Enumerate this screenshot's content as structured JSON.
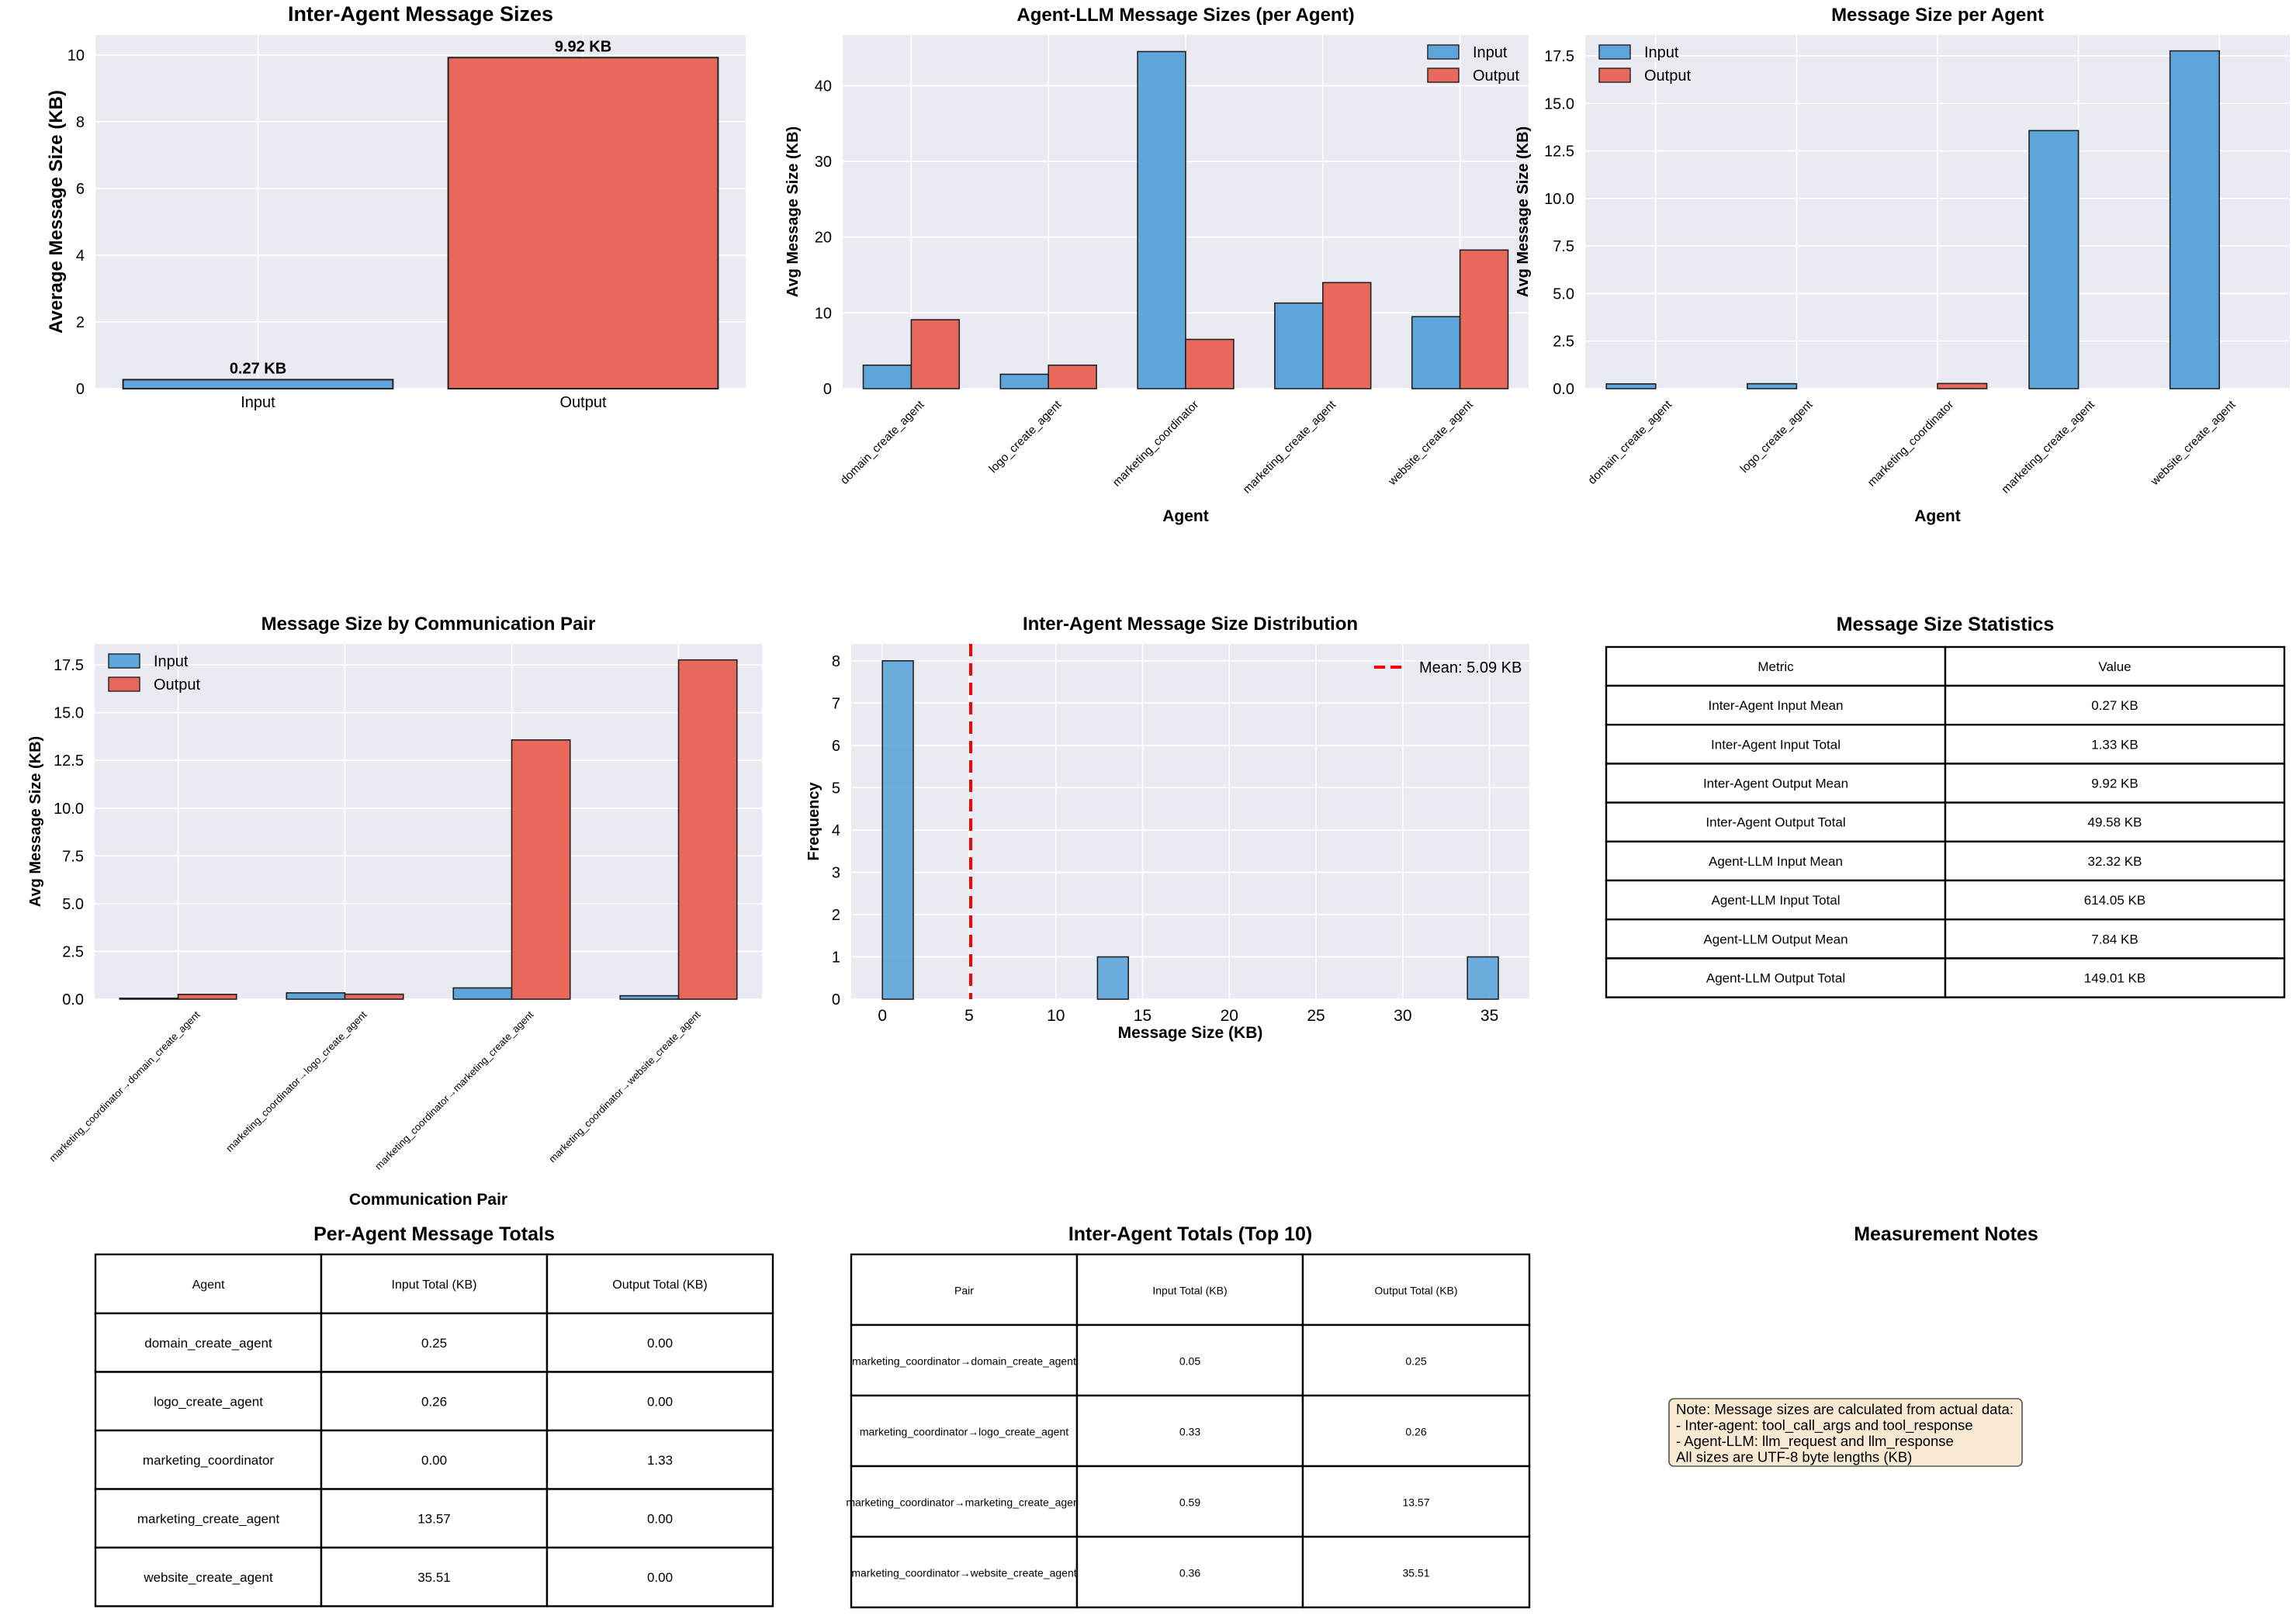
{
  "colors": {
    "input": "#5DA5DA",
    "output": "#E8695C",
    "plot_bg": "#EAEAF2",
    "mean_line": "#FF0000",
    "note_bg": "#F8E9D3"
  },
  "chart_data": [
    {
      "id": "c1",
      "type": "bar",
      "title": "Inter-Agent Message Sizes",
      "xlabel": "",
      "ylabel": "Average Message Size (KB)",
      "categories": [
        "Input",
        "Output"
      ],
      "values": [
        0.27,
        9.92
      ],
      "data_labels": [
        "0.27 KB",
        "9.92 KB"
      ],
      "ylim": [
        0,
        10.6
      ],
      "yticks": [
        "0",
        "2",
        "4",
        "6",
        "8",
        "10"
      ],
      "grid": true,
      "legend": "none"
    },
    {
      "id": "c2",
      "type": "bar",
      "title": "Agent-LLM Message Sizes (per Agent)",
      "xlabel": "Agent",
      "ylabel": "Avg Message Size (KB)",
      "categories": [
        "domain_create_agent",
        "logo_create_agent",
        "marketing_coordinator",
        "marketing_create_agent",
        "website_create_agent"
      ],
      "series": [
        {
          "name": "Input",
          "values": [
            3.1,
            1.9,
            44.5,
            11.3,
            9.5
          ]
        },
        {
          "name": "Output",
          "values": [
            9.1,
            3.1,
            6.5,
            14.0,
            18.3
          ]
        }
      ],
      "ylim": [
        0,
        46.7
      ],
      "yticks": [
        "0",
        "10",
        "20",
        "30",
        "40"
      ],
      "grid": true,
      "legend": "top-right"
    },
    {
      "id": "c3",
      "type": "bar",
      "title": "Message Size per Agent",
      "xlabel": "Agent",
      "ylabel": "Avg Message Size (KB)",
      "categories": [
        "domain_create_agent",
        "logo_create_agent",
        "marketing_coordinator",
        "marketing_create_agent",
        "website_create_agent"
      ],
      "series": [
        {
          "name": "Input",
          "values": [
            0.25,
            0.26,
            0.0,
            13.57,
            17.76
          ]
        },
        {
          "name": "Output",
          "values": [
            0.0,
            0.0,
            0.27,
            0.0,
            0.0
          ]
        }
      ],
      "ylim": [
        0,
        18.6
      ],
      "yticks": [
        "0.0",
        "2.5",
        "5.0",
        "7.5",
        "10.0",
        "12.5",
        "15.0",
        "17.5"
      ],
      "grid": true,
      "legend": "top-left"
    },
    {
      "id": "c4",
      "type": "bar",
      "title": "Message Size by Communication Pair",
      "xlabel": "Communication Pair",
      "ylabel": "Avg Message Size (KB)",
      "categories": [
        "marketing_coordinator→domain_create_agent",
        "marketing_coordinator→logo_create_agent",
        "marketing_coordinator→marketing_create_agent",
        "marketing_coordinator→website_create_agent"
      ],
      "series": [
        {
          "name": "Input",
          "values": [
            0.05,
            0.33,
            0.59,
            0.18
          ]
        },
        {
          "name": "Output",
          "values": [
            0.25,
            0.26,
            13.57,
            17.76
          ]
        }
      ],
      "ylim": [
        0,
        18.6
      ],
      "yticks": [
        "0.0",
        "2.5",
        "5.0",
        "7.5",
        "10.0",
        "12.5",
        "15.0",
        "17.5"
      ],
      "grid": true,
      "legend": "top-left"
    },
    {
      "id": "c5",
      "type": "histogram",
      "title": "Inter-Agent Message Size Distribution",
      "xlabel": "Message Size (KB)",
      "ylabel": "Frequency",
      "bins": [
        {
          "x0": 0.0,
          "x1": 1.78,
          "count": 8
        },
        {
          "x0": 12.4,
          "x1": 14.18,
          "count": 1
        },
        {
          "x0": 33.73,
          "x1": 35.51,
          "count": 1
        }
      ],
      "mean": 5.09,
      "mean_label": "Mean: 5.09 KB",
      "xlim": [
        -1.8,
        37.3
      ],
      "xticks": [
        "0",
        "5",
        "10",
        "15",
        "20",
        "25",
        "30",
        "35"
      ],
      "ylim": [
        0,
        8.4
      ],
      "yticks": [
        "0",
        "1",
        "2",
        "3",
        "4",
        "5",
        "6",
        "7",
        "8"
      ],
      "grid": true,
      "legend": "top-right"
    }
  ],
  "stats_table": {
    "title": "Message Size Statistics",
    "headers": [
      "Metric",
      "Value"
    ],
    "rows": [
      [
        "Inter-Agent Input Mean",
        "0.27 KB"
      ],
      [
        "Inter-Agent Input Total",
        "1.33 KB"
      ],
      [
        "Inter-Agent Output Mean",
        "9.92 KB"
      ],
      [
        "Inter-Agent Output Total",
        "49.58 KB"
      ],
      [
        "Agent-LLM Input Mean",
        "32.32 KB"
      ],
      [
        "Agent-LLM Input Total",
        "614.05 KB"
      ],
      [
        "Agent-LLM Output Mean",
        "7.84 KB"
      ],
      [
        "Agent-LLM Output Total",
        "149.01 KB"
      ]
    ]
  },
  "agent_totals_table": {
    "title": "Per-Agent Message Totals",
    "headers": [
      "Agent",
      "Input Total (KB)",
      "Output Total (KB)"
    ],
    "rows": [
      [
        "domain_create_agent",
        "0.25",
        "0.00"
      ],
      [
        "logo_create_agent",
        "0.26",
        "0.00"
      ],
      [
        "marketing_coordinator",
        "0.00",
        "1.33"
      ],
      [
        "marketing_create_agent",
        "13.57",
        "0.00"
      ],
      [
        "website_create_agent",
        "35.51",
        "0.00"
      ]
    ]
  },
  "pair_totals_table": {
    "title": "Inter-Agent Totals (Top 10)",
    "headers": [
      "Pair",
      "Input Total (KB)",
      "Output Total (KB)"
    ],
    "rows": [
      [
        "marketing_coordinator→domain_create_agent",
        "0.05",
        "0.25"
      ],
      [
        "marketing_coordinator→logo_create_agent",
        "0.33",
        "0.26"
      ],
      [
        "marketing_coordinator→marketing_create_agent",
        "0.59",
        "13.57"
      ],
      [
        "marketing_coordinator→website_create_agent",
        "0.36",
        "35.51"
      ]
    ]
  },
  "notes": {
    "title": "Measurement Notes",
    "lines": [
      "Note: Message sizes are calculated from actual data:",
      "- Inter-agent: tool_call_args and tool_response",
      "- Agent-LLM: llm_request and llm_response",
      "All sizes are UTF-8 byte lengths (KB)"
    ]
  }
}
